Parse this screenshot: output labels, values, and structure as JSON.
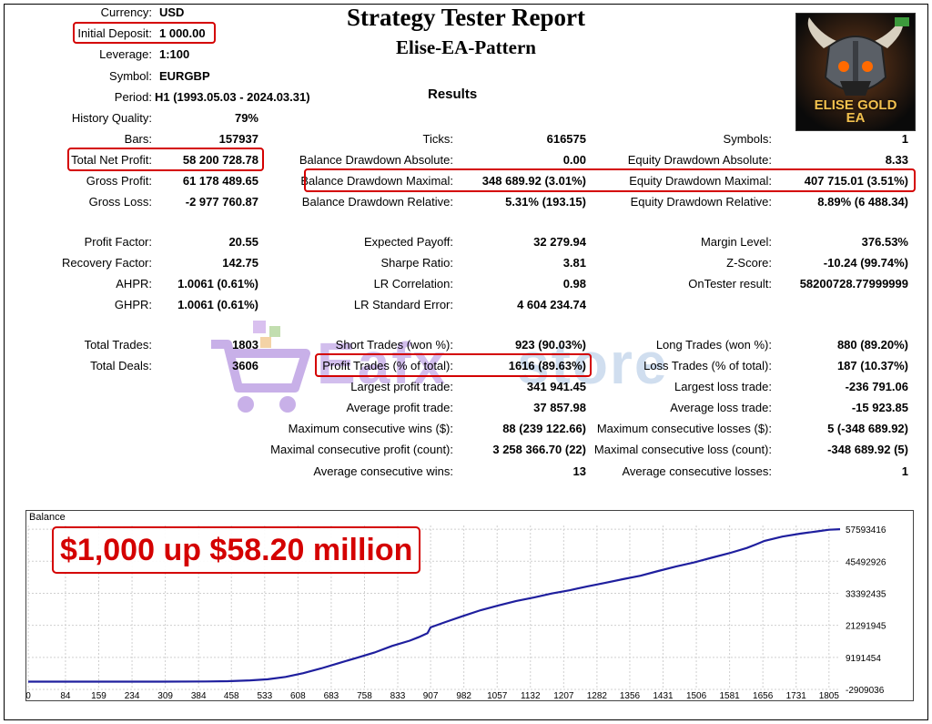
{
  "header": {
    "title": "Strategy Tester Report",
    "subtitle": "Elise-EA-Pattern",
    "results": "Results"
  },
  "info": {
    "currency": {
      "label": "Currency:",
      "value": "USD"
    },
    "deposit": {
      "label": "Initial Deposit:",
      "value": "1 000.00"
    },
    "leverage": {
      "label": "Leverage:",
      "value": "1:100"
    },
    "symbol": {
      "label": "Symbol:",
      "value": "EURGBP"
    },
    "period": {
      "label": "Period:",
      "value": "H1 (1993.05.03 - 2024.03.31)"
    }
  },
  "stats": {
    "history_quality": {
      "label": "History Quality:",
      "value": "79%"
    },
    "bars": {
      "label": "Bars:",
      "value": "157937"
    },
    "ticks": {
      "label": "Ticks:",
      "value": "616575"
    },
    "symbols": {
      "label": "Symbols:",
      "value": "1"
    },
    "total_net_profit": {
      "label": "Total Net Profit:",
      "value": "58 200 728.78"
    },
    "balance_dd_abs": {
      "label": "Balance Drawdown Absolute:",
      "value": "0.00"
    },
    "equity_dd_abs": {
      "label": "Equity Drawdown Absolute:",
      "value": "8.33"
    },
    "gross_profit": {
      "label": "Gross Profit:",
      "value": "61 178 489.65"
    },
    "balance_dd_max": {
      "label": "Balance Drawdown Maximal:",
      "value": "348 689.92 (3.01%)"
    },
    "equity_dd_max": {
      "label": "Equity Drawdown Maximal:",
      "value": "407 715.01 (3.51%)"
    },
    "gross_loss": {
      "label": "Gross Loss:",
      "value": "-2 977 760.87"
    },
    "balance_dd_rel": {
      "label": "Balance Drawdown Relative:",
      "value": "5.31% (193.15)"
    },
    "equity_dd_rel": {
      "label": "Equity Drawdown Relative:",
      "value": "8.89% (6 488.34)"
    },
    "profit_factor": {
      "label": "Profit Factor:",
      "value": "20.55"
    },
    "expected_payoff": {
      "label": "Expected Payoff:",
      "value": "32 279.94"
    },
    "margin_level": {
      "label": "Margin Level:",
      "value": "376.53%"
    },
    "recovery_factor": {
      "label": "Recovery Factor:",
      "value": "142.75"
    },
    "sharpe_ratio": {
      "label": "Sharpe Ratio:",
      "value": "3.81"
    },
    "z_score": {
      "label": "Z-Score:",
      "value": "-10.24 (99.74%)"
    },
    "ahpr": {
      "label": "AHPR:",
      "value": "1.0061 (0.61%)"
    },
    "lr_correlation": {
      "label": "LR Correlation:",
      "value": "0.98"
    },
    "ontester": {
      "label": "OnTester result:",
      "value": "58200728.77999999"
    },
    "ghpr": {
      "label": "GHPR:",
      "value": "1.0061 (0.61%)"
    },
    "lr_std_error": {
      "label": "LR Standard Error:",
      "value": "4 604 234.74"
    },
    "total_trades": {
      "label": "Total Trades:",
      "value": "1803"
    },
    "short_trades": {
      "label": "Short Trades (won %):",
      "value": "923 (90.03%)"
    },
    "long_trades": {
      "label": "Long Trades (won %):",
      "value": "880 (89.20%)"
    },
    "total_deals": {
      "label": "Total Deals:",
      "value": "3606"
    },
    "profit_trades": {
      "label": "Profit Trades (% of total):",
      "value": "1616 (89.63%)"
    },
    "loss_trades": {
      "label": "Loss Trades (% of total):",
      "value": "187 (10.37%)"
    },
    "largest_profit": {
      "label": "Largest profit trade:",
      "value": "341 941.45"
    },
    "largest_loss": {
      "label": "Largest loss trade:",
      "value": "-236 791.06"
    },
    "avg_profit": {
      "label": "Average profit trade:",
      "value": "37 857.98"
    },
    "avg_loss": {
      "label": "Average loss trade:",
      "value": "-15 923.85"
    },
    "max_consec_wins": {
      "label": "Maximum consecutive wins ($):",
      "value": "88 (239 122.66)"
    },
    "max_consec_losses": {
      "label": "Maximum consecutive losses ($):",
      "value": "5 (-348 689.92)"
    },
    "maximal_consec_profit": {
      "label": "Maximal consecutive profit (count):",
      "value": "3 258 366.70 (22)"
    },
    "maximal_consec_loss": {
      "label": "Maximal consecutive loss (count):",
      "value": "-348 689.92 (5)"
    },
    "avg_consec_wins": {
      "label": "Average consecutive wins:",
      "value": "13"
    },
    "avg_consec_losses": {
      "label": "Average consecutive losses:",
      "value": "1"
    }
  },
  "logo": {
    "line1": "ELISE GOLD",
    "line2": "EA",
    "icon": "viking-skull-icon"
  },
  "watermark": {
    "text": "Eafx",
    "text2": "store",
    "icon": "shopping-cart-icon",
    "color": "#9b6fd6"
  },
  "annotation": {
    "text": "$1,000 up $58.20 million",
    "color": "#d40000"
  },
  "chart_data": {
    "type": "line",
    "title": "Balance",
    "line_color": "#1f1f9e",
    "grid": true,
    "x_ticks": [
      0,
      84,
      159,
      234,
      309,
      384,
      458,
      533,
      608,
      683,
      758,
      833,
      907,
      982,
      1057,
      1132,
      1207,
      1282,
      1356,
      1431,
      1506,
      1581,
      1656,
      1731,
      1805
    ],
    "y_ticks": [
      57593416,
      45492926,
      33392435,
      21291945,
      9191454,
      -2909036
    ],
    "xlim": [
      0,
      1830
    ],
    "ylim": [
      -2909036,
      59000000
    ],
    "series": [
      {
        "x": [
          0,
          100,
          200,
          300,
          400,
          450,
          500,
          540,
          580,
          620,
          660,
          700,
          740,
          780,
          820,
          860,
          880,
          900,
          907,
          940,
          980,
          1020,
          1060,
          1100,
          1140,
          1180,
          1220,
          1260,
          1300,
          1340,
          1380,
          1420,
          1460,
          1500,
          1540,
          1580,
          1620,
          1640,
          1660,
          1700,
          1740,
          1780,
          1805,
          1830
        ],
        "y": [
          1000,
          1000,
          5000,
          20000,
          80000,
          200000,
          500000,
          900000,
          1800000,
          3200000,
          5000000,
          7000000,
          9000000,
          11000000,
          13500000,
          15500000,
          16800000,
          18300000,
          20500000,
          22500000,
          24800000,
          27000000,
          28800000,
          30500000,
          31800000,
          33300000,
          34500000,
          36000000,
          37300000,
          38700000,
          40000000,
          41800000,
          43500000,
          45000000,
          46800000,
          48500000,
          50500000,
          51800000,
          53200000,
          54800000,
          55900000,
          56800000,
          57400000,
          57593416
        ]
      }
    ]
  }
}
